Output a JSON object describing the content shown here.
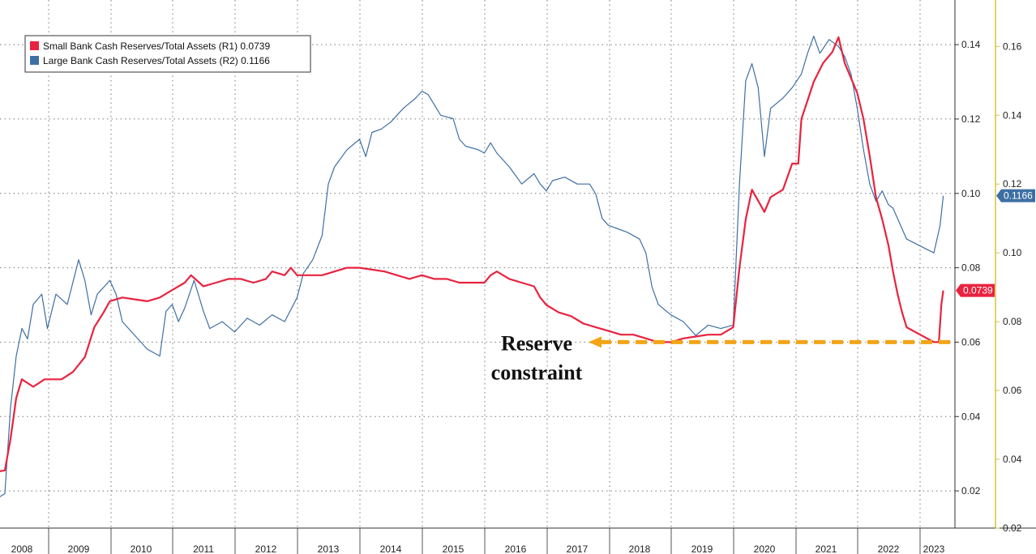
{
  "chart_data": {
    "type": "line",
    "title": "",
    "xlabel": "",
    "ylabel": "",
    "x_ticks": [
      "2008",
      "2009",
      "2010",
      "2011",
      "2012",
      "2013",
      "2014",
      "2015",
      "2016",
      "2017",
      "2018",
      "2019",
      "2020",
      "2021",
      "2022",
      "2023"
    ],
    "xlim": [
      2007.6,
      2023.4
    ],
    "left_axis": {
      "name": "R1",
      "ylim": [
        0.01,
        0.152
      ],
      "ticks": [
        "0.02",
        "0.04",
        "0.06",
        "0.08",
        "0.10",
        "0.12",
        "0.14"
      ],
      "tick_values": [
        0.02,
        0.04,
        0.06,
        0.08,
        0.1,
        0.12,
        0.14
      ]
    },
    "right_axis": {
      "name": "R2",
      "ylim": [
        0.02,
        0.1735
      ],
      "ticks": [
        "0.02",
        "0.04",
        "0.06",
        "0.08",
        "0.10",
        "0.12",
        "0.14",
        "0.16"
      ],
      "tick_values": [
        0.02,
        0.04,
        0.06,
        0.08,
        0.1,
        0.12,
        0.14,
        0.16
      ]
    },
    "series": [
      {
        "name": "Small Bank Cash Reserves/Total Assets (R1)",
        "last_value": "0.0739",
        "legend_label": "Small Bank Cash Reserves/Total Assets (R1) 0.0739",
        "axis": "R1",
        "color": "#e8233f",
        "points": [
          [
            2007.6,
            0.025
          ],
          [
            2008.0,
            0.025
          ],
          [
            2008.2,
            0.0255
          ],
          [
            2008.3,
            0.034
          ],
          [
            2008.4,
            0.045
          ],
          [
            2008.5,
            0.05
          ],
          [
            2008.7,
            0.048
          ],
          [
            2008.9,
            0.05
          ],
          [
            2009.2,
            0.05
          ],
          [
            2009.4,
            0.052
          ],
          [
            2009.6,
            0.056
          ],
          [
            2009.75,
            0.064
          ],
          [
            2009.9,
            0.068
          ],
          [
            2010.0,
            0.071
          ],
          [
            2010.2,
            0.072
          ],
          [
            2010.4,
            0.0715
          ],
          [
            2010.6,
            0.071
          ],
          [
            2010.8,
            0.072
          ],
          [
            2011.0,
            0.074
          ],
          [
            2011.2,
            0.076
          ],
          [
            2011.3,
            0.078
          ],
          [
            2011.5,
            0.075
          ],
          [
            2011.7,
            0.076
          ],
          [
            2011.9,
            0.077
          ],
          [
            2012.1,
            0.077
          ],
          [
            2012.3,
            0.076
          ],
          [
            2012.5,
            0.077
          ],
          [
            2012.6,
            0.079
          ],
          [
            2012.8,
            0.078
          ],
          [
            2012.9,
            0.08
          ],
          [
            2013.0,
            0.078
          ],
          [
            2013.2,
            0.078
          ],
          [
            2013.4,
            0.078
          ],
          [
            2013.6,
            0.079
          ],
          [
            2013.8,
            0.08
          ],
          [
            2014.0,
            0.08
          ],
          [
            2014.2,
            0.0795
          ],
          [
            2014.4,
            0.079
          ],
          [
            2014.6,
            0.078
          ],
          [
            2014.8,
            0.077
          ],
          [
            2015.0,
            0.078
          ],
          [
            2015.2,
            0.077
          ],
          [
            2015.4,
            0.077
          ],
          [
            2015.6,
            0.076
          ],
          [
            2015.8,
            0.076
          ],
          [
            2016.0,
            0.076
          ],
          [
            2016.1,
            0.078
          ],
          [
            2016.2,
            0.079
          ],
          [
            2016.4,
            0.077
          ],
          [
            2016.6,
            0.076
          ],
          [
            2016.8,
            0.075
          ],
          [
            2016.9,
            0.072
          ],
          [
            2017.0,
            0.07
          ],
          [
            2017.2,
            0.068
          ],
          [
            2017.4,
            0.067
          ],
          [
            2017.6,
            0.065
          ],
          [
            2017.8,
            0.064
          ],
          [
            2018.0,
            0.063
          ],
          [
            2018.2,
            0.062
          ],
          [
            2018.4,
            0.062
          ],
          [
            2018.6,
            0.061
          ],
          [
            2018.8,
            0.06
          ],
          [
            2019.0,
            0.06
          ],
          [
            2019.2,
            0.061
          ],
          [
            2019.4,
            0.0615
          ],
          [
            2019.6,
            0.062
          ],
          [
            2019.8,
            0.062
          ],
          [
            2020.0,
            0.064
          ],
          [
            2020.1,
            0.08
          ],
          [
            2020.2,
            0.093
          ],
          [
            2020.3,
            0.101
          ],
          [
            2020.4,
            0.098
          ],
          [
            2020.5,
            0.095
          ],
          [
            2020.6,
            0.099
          ],
          [
            2020.8,
            0.101
          ],
          [
            2020.95,
            0.108
          ],
          [
            2021.05,
            0.108
          ],
          [
            2021.1,
            0.12
          ],
          [
            2021.2,
            0.125
          ],
          [
            2021.3,
            0.13
          ],
          [
            2021.45,
            0.135
          ],
          [
            2021.6,
            0.138
          ],
          [
            2021.7,
            0.142
          ],
          [
            2021.8,
            0.135
          ],
          [
            2021.9,
            0.131
          ],
          [
            2022.0,
            0.127
          ],
          [
            2022.1,
            0.12
          ],
          [
            2022.2,
            0.11
          ],
          [
            2022.3,
            0.099
          ],
          [
            2022.4,
            0.093
          ],
          [
            2022.5,
            0.086
          ],
          [
            2022.6,
            0.079
          ],
          [
            2022.7,
            0.073
          ],
          [
            2022.8,
            0.068
          ],
          [
            2022.9,
            0.064
          ],
          [
            2023.0,
            0.06
          ],
          [
            2023.08,
            0.06
          ],
          [
            2023.12,
            0.07
          ],
          [
            2023.15,
            0.0739
          ]
        ]
      },
      {
        "name": "Large Bank Cash Reserves/Total Assets (R2)",
        "last_value": "0.1166",
        "legend_label": "Large Bank Cash Reserves/Total Assets (R2) 0.1166",
        "axis": "R2",
        "color": "#3d6fa3",
        "points": [
          [
            2007.6,
            0.028
          ],
          [
            2008.0,
            0.028
          ],
          [
            2008.2,
            0.03
          ],
          [
            2008.3,
            0.055
          ],
          [
            2008.4,
            0.07
          ],
          [
            2008.5,
            0.078
          ],
          [
            2008.6,
            0.075
          ],
          [
            2008.7,
            0.085
          ],
          [
            2008.85,
            0.088
          ],
          [
            2008.95,
            0.078
          ],
          [
            2009.1,
            0.088
          ],
          [
            2009.3,
            0.085
          ],
          [
            2009.5,
            0.098
          ],
          [
            2009.6,
            0.092
          ],
          [
            2009.7,
            0.082
          ],
          [
            2009.8,
            0.088
          ],
          [
            2010.0,
            0.092
          ],
          [
            2010.1,
            0.088
          ],
          [
            2010.2,
            0.08
          ],
          [
            2010.4,
            0.076
          ],
          [
            2010.6,
            0.072
          ],
          [
            2010.8,
            0.07
          ],
          [
            2010.9,
            0.083
          ],
          [
            2011.0,
            0.085
          ],
          [
            2011.1,
            0.08
          ],
          [
            2011.2,
            0.084
          ],
          [
            2011.35,
            0.092
          ],
          [
            2011.5,
            0.083
          ],
          [
            2011.6,
            0.078
          ],
          [
            2011.8,
            0.08
          ],
          [
            2012.0,
            0.077
          ],
          [
            2012.2,
            0.081
          ],
          [
            2012.4,
            0.079
          ],
          [
            2012.6,
            0.082
          ],
          [
            2012.8,
            0.08
          ],
          [
            2013.0,
            0.087
          ],
          [
            2013.1,
            0.094
          ],
          [
            2013.25,
            0.098
          ],
          [
            2013.4,
            0.105
          ],
          [
            2013.5,
            0.12
          ],
          [
            2013.6,
            0.125
          ],
          [
            2013.8,
            0.13
          ],
          [
            2014.0,
            0.133
          ],
          [
            2014.1,
            0.128
          ],
          [
            2014.2,
            0.135
          ],
          [
            2014.35,
            0.136
          ],
          [
            2014.5,
            0.138
          ],
          [
            2014.7,
            0.142
          ],
          [
            2014.9,
            0.145
          ],
          [
            2015.0,
            0.147
          ],
          [
            2015.1,
            0.146
          ],
          [
            2015.3,
            0.14
          ],
          [
            2015.5,
            0.139
          ],
          [
            2015.6,
            0.133
          ],
          [
            2015.7,
            0.131
          ],
          [
            2015.9,
            0.13
          ],
          [
            2016.0,
            0.129
          ],
          [
            2016.1,
            0.132
          ],
          [
            2016.2,
            0.129
          ],
          [
            2016.4,
            0.125
          ],
          [
            2016.6,
            0.12
          ],
          [
            2016.8,
            0.123
          ],
          [
            2016.9,
            0.12
          ],
          [
            2017.0,
            0.118
          ],
          [
            2017.1,
            0.121
          ],
          [
            2017.3,
            0.122
          ],
          [
            2017.5,
            0.12
          ],
          [
            2017.7,
            0.12
          ],
          [
            2017.8,
            0.117
          ],
          [
            2017.9,
            0.11
          ],
          [
            2018.0,
            0.108
          ],
          [
            2018.3,
            0.106
          ],
          [
            2018.5,
            0.104
          ],
          [
            2018.6,
            0.1
          ],
          [
            2018.7,
            0.09
          ],
          [
            2018.8,
            0.085
          ],
          [
            2019.0,
            0.082
          ],
          [
            2019.2,
            0.08
          ],
          [
            2019.4,
            0.076
          ],
          [
            2019.6,
            0.079
          ],
          [
            2019.8,
            0.078
          ],
          [
            2020.0,
            0.079
          ],
          [
            2020.1,
            0.12
          ],
          [
            2020.2,
            0.15
          ],
          [
            2020.3,
            0.155
          ],
          [
            2020.4,
            0.148
          ],
          [
            2020.5,
            0.128
          ],
          [
            2020.6,
            0.142
          ],
          [
            2020.8,
            0.145
          ],
          [
            2020.95,
            0.148
          ],
          [
            2021.1,
            0.152
          ],
          [
            2021.2,
            0.158
          ],
          [
            2021.3,
            0.163
          ],
          [
            2021.4,
            0.158
          ],
          [
            2021.55,
            0.162
          ],
          [
            2021.7,
            0.16
          ],
          [
            2021.8,
            0.157
          ],
          [
            2021.9,
            0.152
          ],
          [
            2022.0,
            0.142
          ],
          [
            2022.1,
            0.13
          ],
          [
            2022.2,
            0.12
          ],
          [
            2022.3,
            0.115
          ],
          [
            2022.4,
            0.118
          ],
          [
            2022.5,
            0.114
          ],
          [
            2022.6,
            0.113
          ],
          [
            2022.7,
            0.11
          ],
          [
            2022.8,
            0.107
          ],
          [
            2022.9,
            0.104
          ],
          [
            2023.0,
            0.1
          ],
          [
            2023.1,
            0.108
          ],
          [
            2023.15,
            0.1166
          ]
        ]
      }
    ],
    "annotation": {
      "line1": "Reserve",
      "line2": "constraint",
      "level": 0.06,
      "axis": "R1",
      "arrow_color": "#f2a516"
    },
    "legend": "top-left"
  }
}
